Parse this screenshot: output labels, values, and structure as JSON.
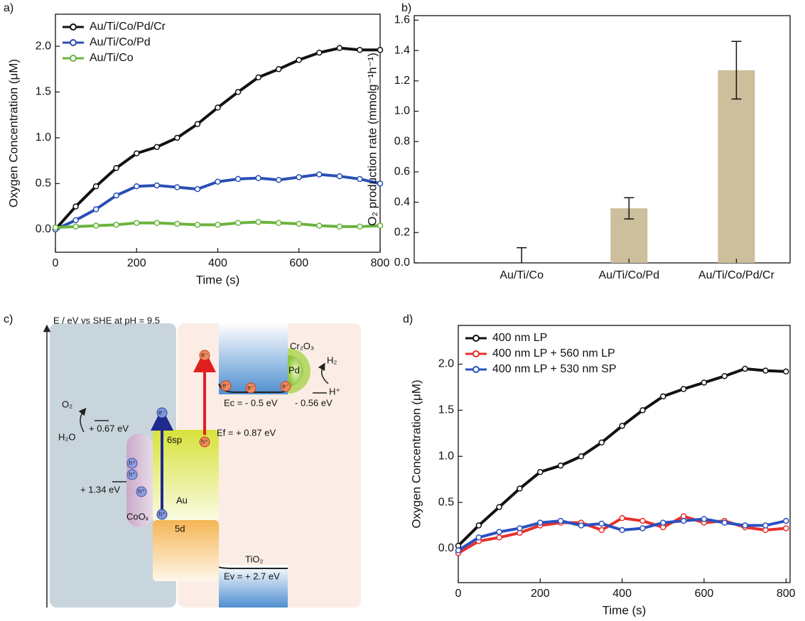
{
  "chart_data": [
    {
      "type": "line",
      "panel": "a)",
      "xlabel": "Time (s)",
      "ylabel": "Oxygen Concentration (μM)",
      "x": [
        0,
        50,
        100,
        150,
        200,
        250,
        300,
        350,
        400,
        450,
        500,
        550,
        600,
        650,
        700,
        750,
        800
      ],
      "series": [
        {
          "name": "Au/Ti/Co/Pd/Cr",
          "color": "#111111",
          "values": [
            0,
            0.25,
            0.47,
            0.67,
            0.83,
            0.9,
            1.0,
            1.15,
            1.33,
            1.5,
            1.66,
            1.75,
            1.85,
            1.93,
            1.98,
            1.96,
            1.96
          ]
        },
        {
          "name": "Au/Ti/Co/Pd",
          "color": "#2a4fb5",
          "values": [
            0,
            0.1,
            0.22,
            0.37,
            0.47,
            0.48,
            0.46,
            0.44,
            0.52,
            0.55,
            0.56,
            0.54,
            0.57,
            0.6,
            0.58,
            0.55,
            0.5
          ]
        },
        {
          "name": "Au/Ti/Co",
          "color": "#6ab43e",
          "values": [
            0.02,
            0.03,
            0.04,
            0.05,
            0.07,
            0.07,
            0.06,
            0.05,
            0.05,
            0.07,
            0.08,
            0.07,
            0.06,
            0.04,
            0.03,
            0.03,
            0.04
          ]
        }
      ],
      "xlim": [
        0,
        800
      ],
      "ylim": [
        -0.25,
        2.35
      ],
      "xticks": [
        0,
        200,
        400,
        600,
        800
      ],
      "yticks": [
        {
          "value": 0,
          "label": "0.0"
        },
        0.5,
        {
          "value": 1,
          "label": "1.0"
        },
        1.5,
        {
          "value": 2,
          "label": "2.0"
        }
      ],
      "legend": "upper left"
    },
    {
      "type": "bar",
      "panel": "b)",
      "ylabel": "O₂ production rate (mmolg⁻¹h⁻¹)",
      "categories": [
        "Au/Ti/Co",
        "Au/Ti/Co/Pd",
        "Au/Ti/Co/Pd/Cr"
      ],
      "values": [
        0,
        0.36,
        1.27
      ],
      "errors": [
        0.1,
        0.07,
        0.19
      ],
      "color": "#cdbf9c",
      "ylim": [
        0,
        1.63
      ],
      "yticks": [
        {
          "value": 0,
          "label": "0.0"
        },
        0.2,
        0.4,
        0.6,
        0.8,
        {
          "value": 1,
          "label": "1.0"
        },
        1.2,
        1.4,
        1.6
      ]
    },
    {
      "type": "line",
      "panel": "d)",
      "xlabel": "Time (s)",
      "ylabel": "Oxygen Concentration (μM)",
      "x": [
        0,
        50,
        100,
        150,
        200,
        250,
        300,
        350,
        400,
        450,
        500,
        550,
        600,
        650,
        700,
        750,
        800
      ],
      "series": [
        {
          "name": "400 nm LP",
          "color": "#111111",
          "values": [
            0.03,
            0.25,
            0.45,
            0.65,
            0.83,
            0.9,
            1.0,
            1.15,
            1.33,
            1.5,
            1.65,
            1.73,
            1.8,
            1.87,
            1.95,
            1.93,
            1.92
          ]
        },
        {
          "name": "400 nm LP + 560 nm LP",
          "color": "#e8302a",
          "values": [
            -0.05,
            0.08,
            0.12,
            0.17,
            0.25,
            0.28,
            0.28,
            0.2,
            0.33,
            0.3,
            0.23,
            0.35,
            0.28,
            0.3,
            0.23,
            0.2,
            0.22
          ]
        },
        {
          "name": "400 nm LP + 530 nm SP",
          "color": "#2b50c0",
          "values": [
            -0.02,
            0.12,
            0.18,
            0.22,
            0.28,
            0.3,
            0.25,
            0.27,
            0.2,
            0.22,
            0.28,
            0.3,
            0.32,
            0.28,
            0.25,
            0.25,
            0.3
          ]
        }
      ],
      "xlim": [
        0,
        810
      ],
      "ylim": [
        -0.37,
        2.42
      ],
      "xticks": [
        0,
        200,
        400,
        600,
        800
      ],
      "yticks": [
        {
          "value": 0,
          "label": "0.0"
        },
        0.5,
        {
          "value": 1,
          "label": "1.0"
        },
        1.5,
        {
          "value": 2,
          "label": "2.0"
        }
      ],
      "legend": "upper left"
    }
  ],
  "diagram": {
    "panel": "c)",
    "axis_label": "E / eV vs SHE at pH = 9.5",
    "o2": "O₂",
    "h2o": "H₂O",
    "o2_potential": "+ 0.67 eV",
    "coox_vb": "+ 1.34 eV",
    "coox": "CoOₓ",
    "sp": "6sp",
    "au": "Au",
    "d": "5d",
    "fermi": "Ef = + 0.87 eV",
    "cb": "Ec = - 0.5 eV",
    "h2_potential": "- 0.56 eV",
    "h2": "H₂",
    "hplus": "H⁺",
    "cr2o3": "Cr₂O₃",
    "pd": "Pd",
    "tio2": "TiO₂",
    "vb": "Ev = + 2.7 eV",
    "electron": "e⁻",
    "hole": "h⁺"
  }
}
